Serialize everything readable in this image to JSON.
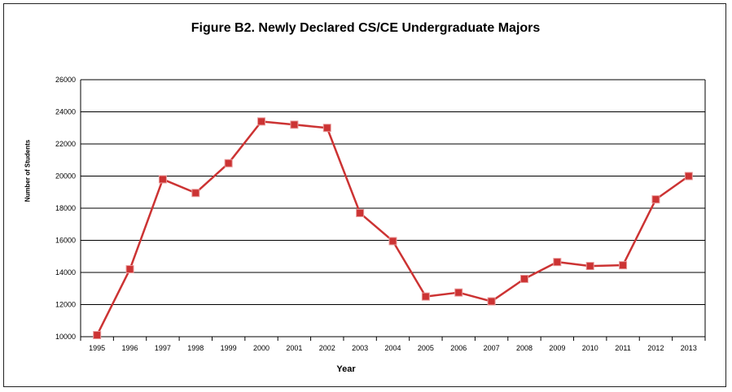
{
  "chart_data": {
    "type": "line",
    "title": "Figure B2. Newly Declared CS/CE Undergraduate Majors",
    "xlabel": "Year",
    "ylabel": "Number of Students",
    "ylim": [
      10000,
      26000
    ],
    "yticks": [
      10000,
      12000,
      14000,
      16000,
      18000,
      20000,
      22000,
      24000,
      26000
    ],
    "grid": "horizontal",
    "legend": "none",
    "categories": [
      "1995",
      "1996",
      "1997",
      "1998",
      "1999",
      "2000",
      "2001",
      "2002",
      "2003",
      "2004",
      "2005",
      "2006",
      "2007",
      "2008",
      "2009",
      "2010",
      "2011",
      "2012",
      "2013"
    ],
    "series": [
      {
        "color": "#cc3333",
        "marker": "square",
        "values": [
          10100,
          14200,
          19800,
          18950,
          20800,
          23400,
          23200,
          23000,
          17700,
          15950,
          12500,
          12750,
          12200,
          13600,
          14650,
          14400,
          14450,
          18550,
          20000
        ]
      }
    ]
  }
}
